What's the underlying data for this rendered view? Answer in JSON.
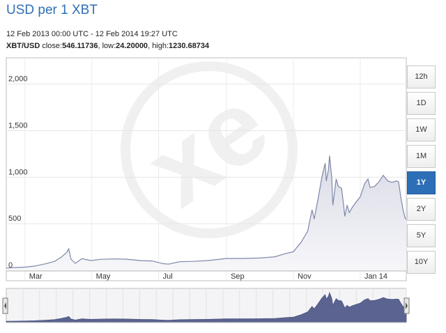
{
  "header": {
    "title": "USD per 1 XBT",
    "date_range": "12 Feb 2013 00:00 UTC - 12 Feb 2014 19:27 UTC",
    "pair": "XBT/USD",
    "close_label": "close:",
    "close_value": "546.11736",
    "low_label": "low:",
    "low_value": "24.20000",
    "high_label": "high:",
    "high_value": "1230.68734"
  },
  "range_buttons": [
    {
      "label": "12h",
      "active": false
    },
    {
      "label": "1D",
      "active": false
    },
    {
      "label": "1W",
      "active": false
    },
    {
      "label": "1M",
      "active": false
    },
    {
      "label": "1Y",
      "active": true
    },
    {
      "label": "2Y",
      "active": false
    },
    {
      "label": "5Y",
      "active": false
    },
    {
      "label": "10Y",
      "active": false
    }
  ],
  "colors": {
    "line": "#7e86a8",
    "area_top": "#d9dbe6",
    "nav_fill": "#5b6490",
    "accent": "#2d6fb7"
  },
  "chart_data": {
    "type": "area",
    "title": "USD per 1 XBT",
    "xlabel": "",
    "ylabel": "",
    "x_range": [
      "2013-02-12",
      "2014-02-12"
    ],
    "ylim": [
      0,
      2200
    ],
    "y_ticks": [
      0,
      500,
      1000,
      1500,
      2000
    ],
    "y_tick_labels": [
      "0",
      "500",
      "1,000",
      "1,500",
      "2,000"
    ],
    "x_ticks": [
      {
        "label": "Mar",
        "date": "2013-03-01"
      },
      {
        "label": "May",
        "date": "2013-05-01"
      },
      {
        "label": "Jul",
        "date": "2013-07-01"
      },
      {
        "label": "Sep",
        "date": "2013-09-01"
      },
      {
        "label": "Nov",
        "date": "2013-11-01"
      },
      {
        "label": "Jan 14",
        "date": "2014-01-01"
      }
    ],
    "grid": true,
    "series": [
      {
        "name": "XBT/USD",
        "points": [
          [
            "2013-02-12",
            24
          ],
          [
            "2013-02-20",
            30
          ],
          [
            "2013-03-01",
            34
          ],
          [
            "2013-03-10",
            46
          ],
          [
            "2013-03-20",
            70
          ],
          [
            "2013-03-28",
            95
          ],
          [
            "2013-04-03",
            140
          ],
          [
            "2013-04-08",
            190
          ],
          [
            "2013-04-10",
            230
          ],
          [
            "2013-04-12",
            120
          ],
          [
            "2013-04-16",
            75
          ],
          [
            "2013-04-22",
            125
          ],
          [
            "2013-04-30",
            105
          ],
          [
            "2013-05-10",
            118
          ],
          [
            "2013-05-20",
            122
          ],
          [
            "2013-06-01",
            120
          ],
          [
            "2013-06-15",
            104
          ],
          [
            "2013-06-25",
            100
          ],
          [
            "2013-07-05",
            72
          ],
          [
            "2013-07-10",
            66
          ],
          [
            "2013-07-20",
            92
          ],
          [
            "2013-08-01",
            96
          ],
          [
            "2013-08-15",
            105
          ],
          [
            "2013-09-01",
            127
          ],
          [
            "2013-09-15",
            127
          ],
          [
            "2013-10-01",
            132
          ],
          [
            "2013-10-15",
            145
          ],
          [
            "2013-10-25",
            180
          ],
          [
            "2013-11-01",
            200
          ],
          [
            "2013-11-08",
            300
          ],
          [
            "2013-11-14",
            420
          ],
          [
            "2013-11-18",
            650
          ],
          [
            "2013-11-20",
            550
          ],
          [
            "2013-11-24",
            800
          ],
          [
            "2013-11-27",
            1000
          ],
          [
            "2013-11-29",
            1100
          ],
          [
            "2013-11-30",
            1150
          ],
          [
            "2013-12-01",
            960
          ],
          [
            "2013-12-03",
            1080
          ],
          [
            "2013-12-04",
            1230
          ],
          [
            "2013-12-06",
            990
          ],
          [
            "2013-12-07",
            700
          ],
          [
            "2013-12-10",
            980
          ],
          [
            "2013-12-12",
            900
          ],
          [
            "2013-12-15",
            880
          ],
          [
            "2013-12-18",
            580
          ],
          [
            "2013-12-20",
            700
          ],
          [
            "2013-12-22",
            620
          ],
          [
            "2013-12-25",
            680
          ],
          [
            "2013-12-28",
            730
          ],
          [
            "2014-01-01",
            790
          ],
          [
            "2014-01-05",
            930
          ],
          [
            "2014-01-08",
            980
          ],
          [
            "2014-01-10",
            890
          ],
          [
            "2014-01-14",
            900
          ],
          [
            "2014-01-18",
            950
          ],
          [
            "2014-01-22",
            1020
          ],
          [
            "2014-01-26",
            960
          ],
          [
            "2014-01-30",
            945
          ],
          [
            "2014-02-03",
            960
          ],
          [
            "2014-02-05",
            950
          ],
          [
            "2014-02-07",
            790
          ],
          [
            "2014-02-09",
            650
          ],
          [
            "2014-02-11",
            560
          ],
          [
            "2014-02-12",
            546
          ]
        ]
      }
    ]
  }
}
